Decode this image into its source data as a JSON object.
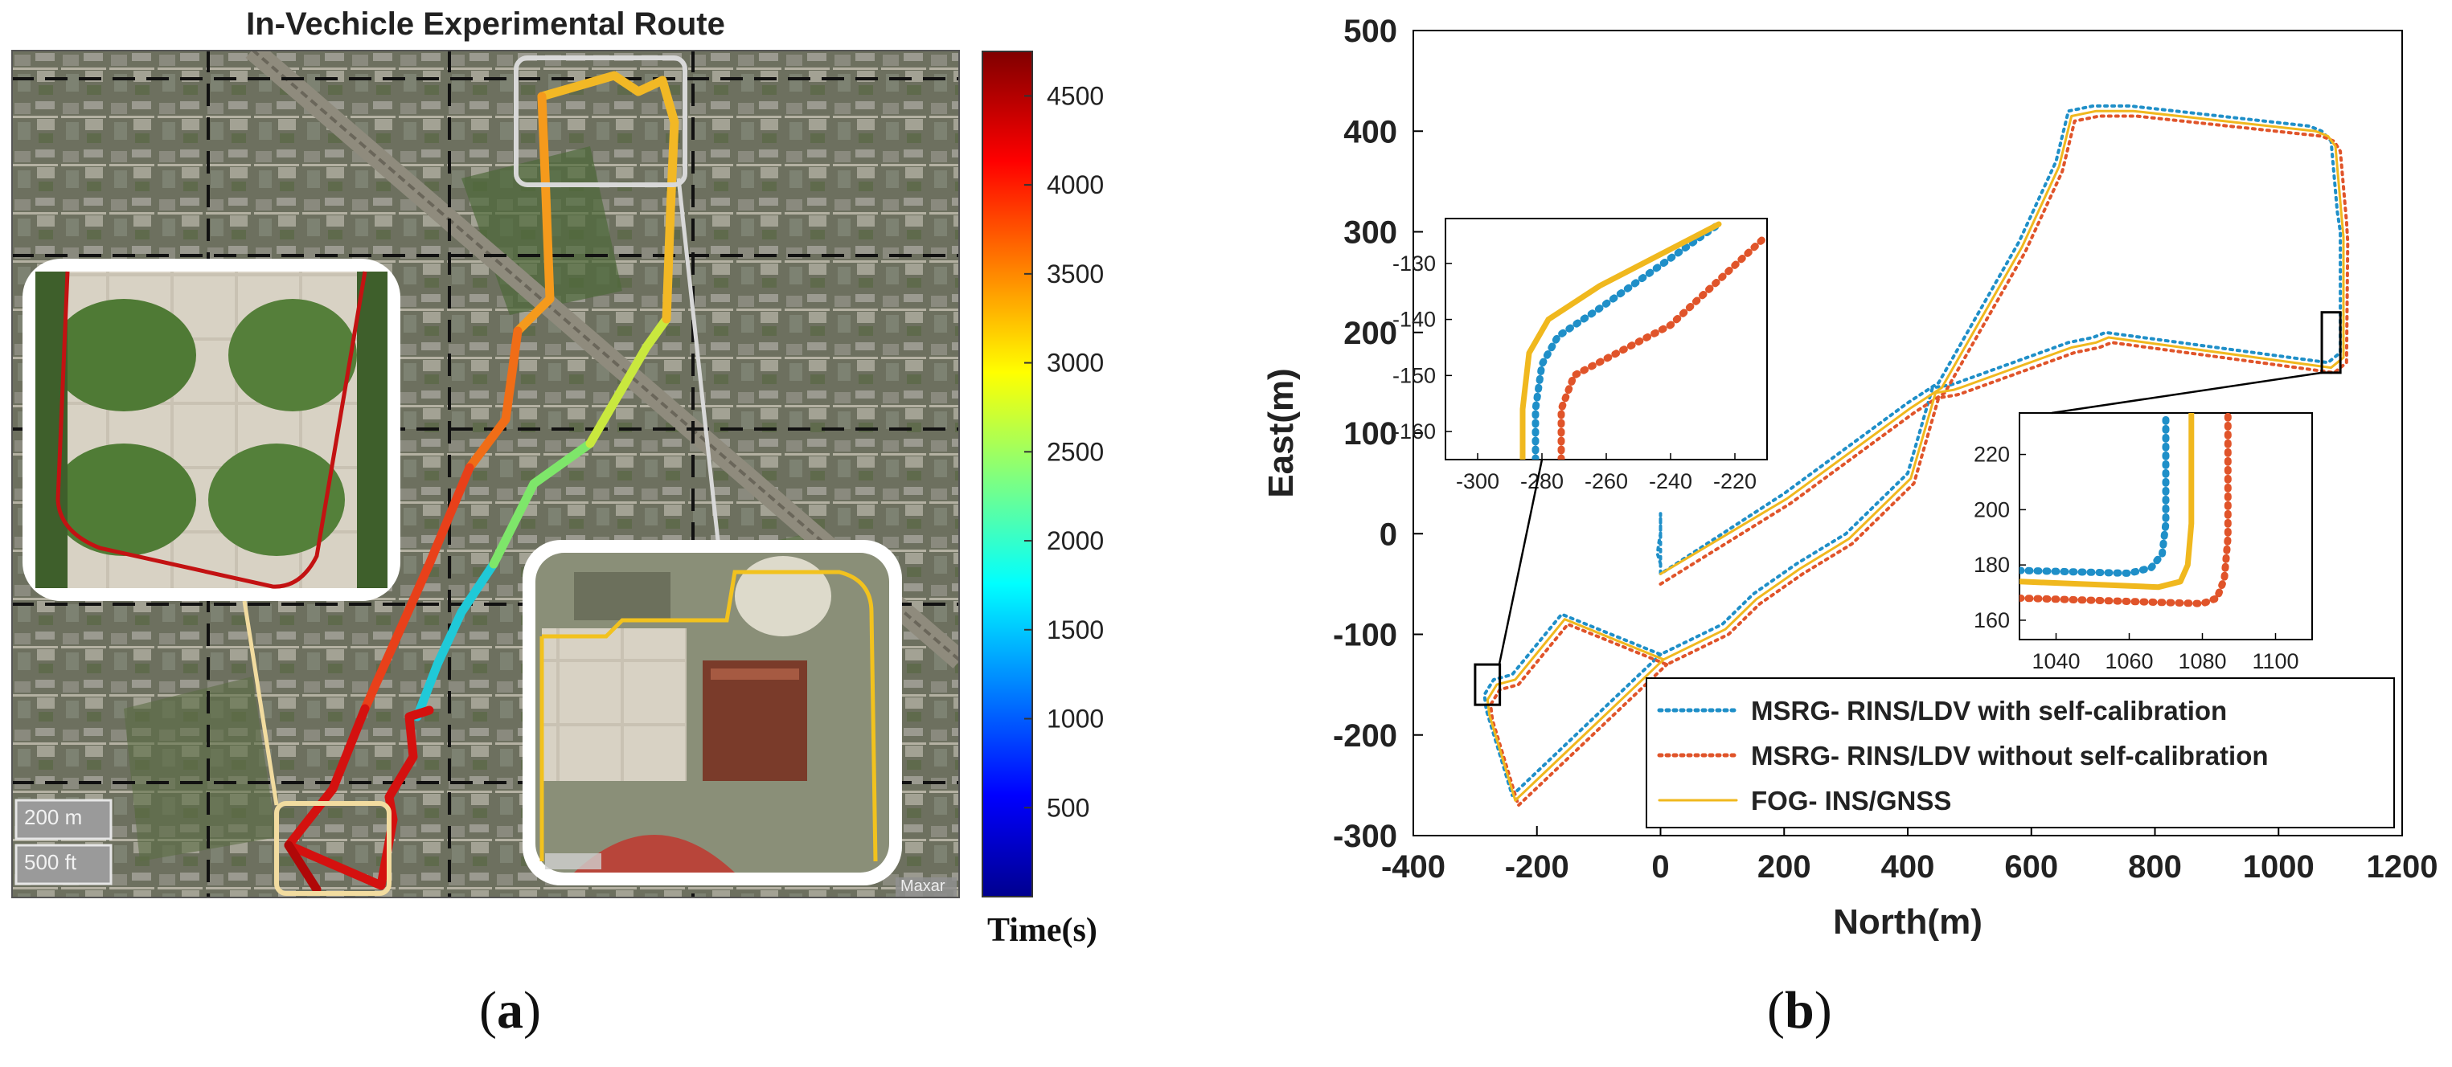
{
  "panel_a": {
    "title": "In-Vechicle Experimental Route",
    "colorbar_label": "Time(s)",
    "colorbar_ticks": [
      500,
      1000,
      1500,
      2000,
      2500,
      3000,
      3500,
      4000,
      4500
    ],
    "colorbar_range": [
      0,
      4750
    ],
    "scale_labels": [
      "200 m",
      "500 ft"
    ],
    "attribution": "Maxar",
    "caption_open": "(",
    "caption_letter": "a",
    "caption_close": ")"
  },
  "panel_b": {
    "caption_open": "(",
    "caption_letter": "b",
    "caption_close": ")"
  },
  "colors": {
    "with_calib": "#1f8fc8",
    "without_calib": "#e0542a",
    "gnss": "#f0b81e",
    "box": "#000000"
  },
  "chart_data": {
    "type": "line",
    "title": "",
    "xlabel": "North(m)",
    "ylabel": "East(m)",
    "xlim": [
      -400,
      1200
    ],
    "ylim": [
      -300,
      500
    ],
    "xticks": [
      -400,
      -200,
      0,
      200,
      400,
      600,
      800,
      1000,
      1200
    ],
    "yticks": [
      -300,
      -200,
      -100,
      0,
      100,
      200,
      300,
      400,
      500
    ],
    "grid": false,
    "legend_position": "bottom-right",
    "series": [
      {
        "name": "MSRG- RINS/LDV with self-calibration",
        "style": "dotted",
        "x": [
          0,
          -5,
          -3,
          0,
          0,
          0,
          200,
          400,
          450,
          580,
          640,
          660,
          700,
          720,
          760,
          1050,
          1070,
          1085,
          1095,
          1100,
          1100,
          1080,
          960,
          720,
          700,
          660,
          480,
          470,
          440,
          400,
          300,
          220,
          150,
          100,
          0,
          -40,
          -80,
          -120,
          -160,
          -240,
          -270,
          -285,
          -282,
          -240,
          0
        ],
        "y": [
          -30,
          -20,
          -10,
          0,
          20,
          -40,
          40,
          130,
          150,
          290,
          370,
          420,
          425,
          425,
          425,
          405,
          400,
          390,
          320,
          300,
          180,
          170,
          180,
          200,
          195,
          190,
          150,
          148,
          145,
          60,
          0,
          -30,
          -60,
          -90,
          -120,
          -110,
          -100,
          -90,
          -80,
          -140,
          -145,
          -160,
          -175,
          -260,
          -120
        ]
      },
      {
        "name": "MSRG- RINS/LDV without self-calibration",
        "style": "dotted",
        "x": [
          0,
          210,
          410,
          460,
          590,
          650,
          670,
          710,
          730,
          770,
          1070,
          1090,
          1100,
          1110,
          1112,
          1110,
          1090,
          970,
          730,
          710,
          670,
          490,
          480,
          450,
          410,
          310,
          230,
          160,
          110,
          10,
          -30,
          -70,
          -110,
          -150,
          -230,
          -260,
          -275,
          -272,
          -230,
          10
        ],
        "y": [
          -50,
          30,
          120,
          140,
          280,
          360,
          410,
          415,
          415,
          415,
          395,
          390,
          380,
          310,
          290,
          170,
          160,
          170,
          190,
          185,
          180,
          140,
          138,
          135,
          50,
          -10,
          -40,
          -70,
          -100,
          -130,
          -120,
          -110,
          -100,
          -90,
          -150,
          -155,
          -170,
          -185,
          -270,
          -130
        ]
      },
      {
        "name": "FOG- INS/GNSS",
        "style": "solid",
        "x": [
          0,
          205,
          405,
          455,
          585,
          645,
          665,
          705,
          725,
          765,
          1060,
          1080,
          1092,
          1102,
          1105,
          1105,
          1085,
          965,
          725,
          705,
          665,
          485,
          475,
          445,
          405,
          305,
          225,
          155,
          105,
          5,
          -35,
          -75,
          -115,
          -155,
          -235,
          -265,
          -280,
          -277,
          -235,
          5
        ],
        "y": [
          -40,
          35,
          125,
          145,
          285,
          365,
          415,
          420,
          420,
          420,
          400,
          395,
          385,
          315,
          295,
          175,
          165,
          175,
          195,
          190,
          185,
          145,
          143,
          140,
          55,
          -5,
          -35,
          -65,
          -95,
          -125,
          -115,
          -105,
          -95,
          -85,
          -145,
          -150,
          -165,
          -180,
          -265,
          -125
        ]
      }
    ],
    "inset_left": {
      "xlim": [
        -310,
        -210
      ],
      "ylim": [
        -165,
        -122
      ],
      "xticks": [
        -300,
        -280,
        -260,
        -240,
        -220
      ],
      "yticks": [
        -160,
        -150,
        -140,
        -130
      ],
      "source_box_x": [
        -300,
        -260
      ],
      "source_box_y": [
        -170,
        -130
      ],
      "series": [
        {
          "name": "with",
          "x": [
            -282,
            -282,
            -280,
            -275,
            -262,
            -225
          ],
          "y": [
            -165,
            -156,
            -148,
            -143,
            -138,
            -123
          ]
        },
        {
          "name": "without",
          "x": [
            -274,
            -274,
            -270,
            -260,
            -240,
            -210
          ],
          "y": [
            -165,
            -156,
            -150,
            -147,
            -141,
            -125
          ]
        },
        {
          "name": "gnss",
          "x": [
            -286,
            -286,
            -284,
            -278,
            -262,
            -225
          ],
          "y": [
            -165,
            -156,
            -146,
            -140,
            -134,
            -123
          ]
        }
      ]
    },
    "inset_right": {
      "xlim": [
        1030,
        1110
      ],
      "ylim": [
        153,
        235
      ],
      "xticks": [
        1040,
        1060,
        1080,
        1100
      ],
      "yticks": [
        160,
        180,
        200,
        220
      ],
      "source_box_x": [
        1070,
        1100
      ],
      "source_box_y": [
        160,
        220
      ],
      "series": [
        {
          "name": "with",
          "x": [
            1030,
            1060,
            1066,
            1069,
            1070,
            1070
          ],
          "y": [
            178,
            177,
            179,
            184,
            195,
            235
          ]
        },
        {
          "name": "without",
          "x": [
            1030,
            1080,
            1084,
            1086,
            1087,
            1087
          ],
          "y": [
            168,
            166,
            168,
            175,
            190,
            235
          ]
        },
        {
          "name": "gnss",
          "x": [
            1030,
            1068,
            1074,
            1076,
            1077,
            1077
          ],
          "y": [
            174,
            172,
            174,
            180,
            195,
            235
          ]
        }
      ]
    }
  }
}
